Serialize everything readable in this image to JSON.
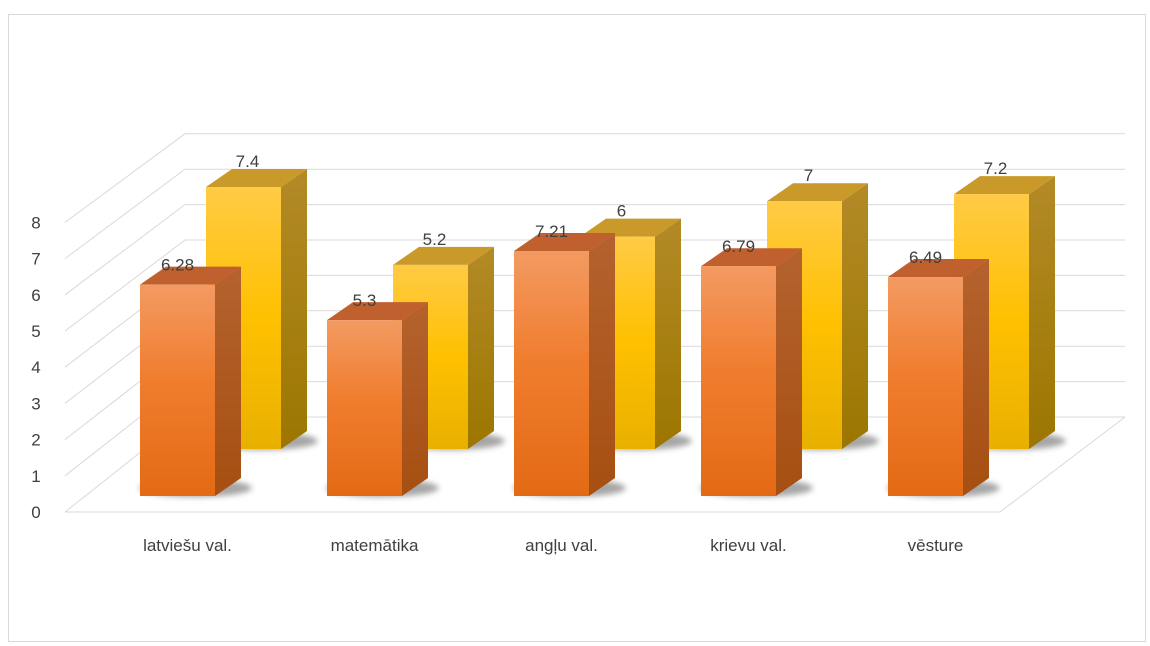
{
  "chart_data": {
    "type": "bar",
    "variant": "3d-clustered-column",
    "categories": [
      "latviešu val.",
      "matemātika",
      "angļu val.",
      "krievu val.",
      "vēsture"
    ],
    "series": [
      {
        "values": [
          6.28,
          5.3,
          7.21,
          6.79,
          6.49
        ],
        "color": "#f07828"
      },
      {
        "values": [
          7.4,
          5.2,
          6,
          7,
          7.2
        ],
        "color": "#ffc000"
      }
    ],
    "data_labels": [
      [
        "6.28",
        "5.3",
        "7.21",
        "6.79",
        "6.49"
      ],
      [
        "7.4",
        "5.2",
        "6",
        "7",
        "7.2"
      ]
    ],
    "yticks": [
      "0",
      "1",
      "2",
      "3",
      "4",
      "5",
      "6",
      "7",
      "8"
    ],
    "ylim": [
      0,
      8
    ],
    "grid": true,
    "legend": "none",
    "title": "",
    "xlabel": "",
    "ylabel": ""
  }
}
